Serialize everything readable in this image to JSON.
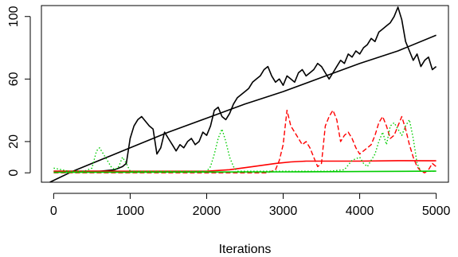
{
  "chart_data": {
    "type": "line",
    "title": "",
    "xlabel": "Iterations",
    "ylabel": "",
    "xlim": [
      -160,
      5160
    ],
    "ylim": [
      -6,
      107
    ],
    "grid": false,
    "legend": "none",
    "x_ticks": [
      0,
      1000,
      2000,
      3000,
      4000,
      5000
    ],
    "x_tick_labels": [
      "0",
      "1000",
      "2000",
      "3000",
      "4000",
      "5000"
    ],
    "y_ticks": [
      0,
      20,
      60,
      100
    ],
    "y_tick_labels": [
      "0",
      "20",
      "60",
      "100"
    ],
    "series": [
      {
        "color": "#000000",
        "style": "solid",
        "x": [
          0,
          200,
          400,
          600,
          800,
          900,
          950,
          1000,
          1050,
          1100,
          1150,
          1200,
          1250,
          1300,
          1350,
          1400,
          1450,
          1500,
          1550,
          1600,
          1650,
          1700,
          1750,
          1800,
          1850,
          1900,
          1950,
          2000,
          2050,
          2100,
          2150,
          2200,
          2250,
          2300,
          2350,
          2400,
          2450,
          2500,
          2550,
          2600,
          2650,
          2700,
          2750,
          2800,
          2850,
          2900,
          2950,
          3000,
          3050,
          3100,
          3150,
          3200,
          3250,
          3300,
          3350,
          3400,
          3450,
          3500,
          3550,
          3600,
          3650,
          3700,
          3750,
          3800,
          3850,
          3900,
          3950,
          4000,
          4050,
          4100,
          4150,
          4200,
          4250,
          4300,
          4350,
          4400,
          4450,
          4500,
          4550,
          4600,
          4650,
          4700,
          4750,
          4800,
          4850,
          4900,
          4950,
          5000
        ],
        "y": [
          1,
          1,
          1,
          1,
          2,
          4,
          6,
          22,
          30,
          34,
          36,
          33,
          30,
          28,
          12,
          16,
          26,
          22,
          18,
          14,
          18,
          16,
          20,
          22,
          18,
          20,
          26,
          24,
          30,
          40,
          42,
          36,
          34,
          38,
          44,
          48,
          50,
          52,
          54,
          58,
          60,
          62,
          66,
          68,
          62,
          58,
          60,
          56,
          62,
          60,
          58,
          64,
          66,
          62,
          64,
          66,
          70,
          68,
          64,
          60,
          64,
          68,
          72,
          70,
          76,
          74,
          78,
          76,
          80,
          82,
          86,
          84,
          90,
          92,
          94,
          96,
          100,
          106,
          98,
          84,
          78,
          72,
          76,
          68,
          72,
          74,
          66,
          68
        ]
      },
      {
        "color": "#000000",
        "style": "solid",
        "x": [
          -50,
          250,
          500,
          750,
          1000,
          1500,
          2000,
          2500,
          3000,
          3500,
          4000,
          4500,
          5000
        ],
        "y": [
          -6,
          1,
          6,
          11,
          16,
          26,
          35,
          44,
          52,
          61,
          70,
          78,
          88
        ]
      },
      {
        "color": "#ff0000",
        "style": "dashed",
        "x": [
          0,
          500,
          1000,
          1500,
          2000,
          2500,
          2800,
          2900,
          2950,
          3000,
          3050,
          3100,
          3150,
          3200,
          3250,
          3300,
          3350,
          3400,
          3450,
          3500,
          3550,
          3600,
          3650,
          3700,
          3750,
          3800,
          3850,
          3900,
          3950,
          4000,
          4050,
          4100,
          4150,
          4200,
          4250,
          4300,
          4350,
          4400,
          4450,
          4500,
          4550,
          4600,
          4650,
          4700,
          4750,
          4800,
          4850,
          4900,
          4950,
          5000
        ],
        "y": [
          0,
          0,
          0,
          0,
          0,
          0,
          0,
          2,
          8,
          18,
          40,
          30,
          26,
          22,
          18,
          20,
          16,
          10,
          4,
          6,
          30,
          36,
          40,
          34,
          20,
          24,
          26,
          22,
          16,
          12,
          14,
          16,
          18,
          24,
          32,
          36,
          30,
          22,
          24,
          30,
          36,
          28,
          18,
          10,
          4,
          1,
          0,
          2,
          6,
          4
        ]
      },
      {
        "color": "#ff0000",
        "style": "solid",
        "x": [
          0,
          500,
          1000,
          1500,
          2000,
          2300,
          2600,
          2900,
          3100,
          3300,
          3500,
          4000,
          4500,
          5000
        ],
        "y": [
          1,
          1,
          1,
          1,
          1,
          2,
          4,
          6,
          7,
          7.5,
          7.5,
          7.5,
          7.8,
          7.7
        ]
      },
      {
        "color": "#00cc00",
        "style": "dotted",
        "x": [
          0,
          100,
          200,
          300,
          400,
          500,
          560,
          600,
          650,
          700,
          750,
          800,
          850,
          900,
          950,
          1000,
          1200,
          1400,
          1600,
          1800,
          2000,
          2050,
          2100,
          2150,
          2200,
          2250,
          2300,
          2350,
          2400,
          2600,
          2800,
          3000,
          3200,
          3400,
          3600,
          3800,
          3900,
          4000,
          4050,
          4100,
          4150,
          4200,
          4250,
          4300,
          4350,
          4400,
          4450,
          4500,
          4550,
          4600,
          4650,
          4700,
          4750,
          4800,
          5000
        ],
        "y": [
          3,
          2,
          1,
          1,
          1,
          3,
          14,
          16,
          12,
          8,
          4,
          2,
          4,
          10,
          6,
          1,
          1,
          1,
          1,
          1,
          1,
          4,
          12,
          22,
          28,
          20,
          10,
          4,
          1,
          1,
          1,
          1,
          1,
          1,
          1,
          2,
          8,
          10,
          6,
          4,
          8,
          12,
          20,
          26,
          18,
          30,
          32,
          28,
          24,
          30,
          34,
          22,
          6,
          1,
          1
        ]
      },
      {
        "color": "#00cc00",
        "style": "solid",
        "x": [
          0,
          1000,
          2000,
          3000,
          4000,
          5000
        ],
        "y": [
          0.3,
          0.4,
          0.5,
          0.6,
          0.8,
          1.1
        ]
      }
    ]
  }
}
